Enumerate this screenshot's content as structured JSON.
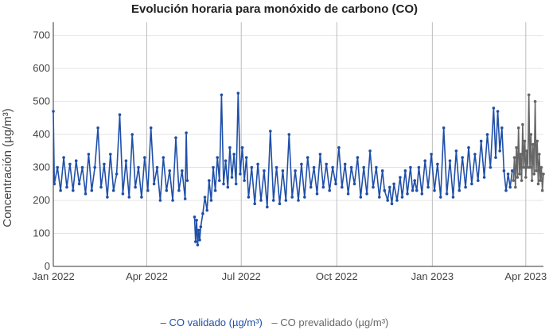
{
  "chart_data": {
    "type": "line",
    "title": "Evolución horaria para monóxido de carbono (CO)",
    "ylabel": "Concentración (µg/m³)",
    "xlabel": "",
    "ylim": [
      0,
      740
    ],
    "xlim": [
      "2022-01-01",
      "2023-04-18"
    ],
    "y_ticks": [
      0,
      100,
      200,
      300,
      400,
      500,
      600,
      700
    ],
    "x_ticks": [
      {
        "date": "2022-01-01",
        "label": "Jan 2022"
      },
      {
        "date": "2022-04-01",
        "label": "Apr 2022"
      },
      {
        "date": "2022-07-01",
        "label": "Jul 2022"
      },
      {
        "date": "2022-10-01",
        "label": "Oct 2022"
      },
      {
        "date": "2023-01-01",
        "label": "Jan 2023"
      },
      {
        "date": "2023-04-01",
        "label": "Apr 2023"
      }
    ],
    "grid": true,
    "legend_position": "bottom",
    "series": [
      {
        "name": "CO validado (µg/m³)",
        "color": "#1f4fa8",
        "marker": "dot",
        "points": [
          [
            "2022-01-01",
            470
          ],
          [
            "2022-01-02",
            250
          ],
          [
            "2022-01-05",
            300
          ],
          [
            "2022-01-08",
            230
          ],
          [
            "2022-01-11",
            330
          ],
          [
            "2022-01-14",
            240
          ],
          [
            "2022-01-17",
            310
          ],
          [
            "2022-01-20",
            230
          ],
          [
            "2022-01-23",
            320
          ],
          [
            "2022-01-26",
            250
          ],
          [
            "2022-01-29",
            300
          ],
          [
            "2022-02-01",
            220
          ],
          [
            "2022-02-04",
            340
          ],
          [
            "2022-02-07",
            230
          ],
          [
            "2022-02-10",
            300
          ],
          [
            "2022-02-13",
            420
          ],
          [
            "2022-02-16",
            240
          ],
          [
            "2022-02-19",
            310
          ],
          [
            "2022-02-22",
            210
          ],
          [
            "2022-02-25",
            340
          ],
          [
            "2022-02-28",
            230
          ],
          [
            "2022-03-03",
            280
          ],
          [
            "2022-03-06",
            460
          ],
          [
            "2022-03-09",
            220
          ],
          [
            "2022-03-12",
            320
          ],
          [
            "2022-03-15",
            210
          ],
          [
            "2022-03-18",
            400
          ],
          [
            "2022-03-21",
            240
          ],
          [
            "2022-03-24",
            300
          ],
          [
            "2022-03-27",
            210
          ],
          [
            "2022-03-30",
            330
          ],
          [
            "2022-04-02",
            230
          ],
          [
            "2022-04-05",
            420
          ],
          [
            "2022-04-08",
            250
          ],
          [
            "2022-04-11",
            300
          ],
          [
            "2022-04-14",
            200
          ],
          [
            "2022-04-17",
            330
          ],
          [
            "2022-04-20",
            230
          ],
          [
            "2022-04-23",
            290
          ],
          [
            "2022-04-26",
            200
          ],
          [
            "2022-04-29",
            390
          ],
          [
            "2022-05-02",
            230
          ],
          [
            "2022-05-05",
            290
          ],
          [
            "2022-05-08",
            205
          ],
          [
            "2022-05-09",
            405
          ],
          [
            "2022-05-10",
            260
          ],
          [
            "2022-05-17",
            150
          ],
          [
            "2022-05-18",
            75
          ],
          [
            "2022-05-19",
            140
          ],
          [
            "2022-05-20",
            65
          ],
          [
            "2022-05-21",
            110
          ],
          [
            "2022-05-22",
            80
          ],
          [
            "2022-05-23",
            120
          ],
          [
            "2022-05-25",
            160
          ],
          [
            "2022-05-27",
            210
          ],
          [
            "2022-05-29",
            170
          ],
          [
            "2022-05-31",
            260
          ],
          [
            "2022-06-02",
            200
          ],
          [
            "2022-06-04",
            300
          ],
          [
            "2022-06-06",
            230
          ],
          [
            "2022-06-08",
            330
          ],
          [
            "2022-06-10",
            260
          ],
          [
            "2022-06-12",
            520
          ],
          [
            "2022-06-14",
            250
          ],
          [
            "2022-06-16",
            320
          ],
          [
            "2022-06-18",
            240
          ],
          [
            "2022-06-20",
            360
          ],
          [
            "2022-06-22",
            270
          ],
          [
            "2022-06-24",
            340
          ],
          [
            "2022-06-26",
            250
          ],
          [
            "2022-06-28",
            525
          ],
          [
            "2022-06-30",
            280
          ],
          [
            "2022-07-02",
            360
          ],
          [
            "2022-07-04",
            260
          ],
          [
            "2022-07-06",
            330
          ],
          [
            "2022-07-08",
            210
          ],
          [
            "2022-07-11",
            300
          ],
          [
            "2022-07-14",
            190
          ],
          [
            "2022-07-17",
            310
          ],
          [
            "2022-07-20",
            200
          ],
          [
            "2022-07-23",
            290
          ],
          [
            "2022-07-26",
            180
          ],
          [
            "2022-07-29",
            410
          ],
          [
            "2022-08-01",
            200
          ],
          [
            "2022-08-04",
            300
          ],
          [
            "2022-08-07",
            190
          ],
          [
            "2022-08-10",
            290
          ],
          [
            "2022-08-13",
            200
          ],
          [
            "2022-08-16",
            400
          ],
          [
            "2022-08-19",
            210
          ],
          [
            "2022-08-22",
            290
          ],
          [
            "2022-08-25",
            200
          ],
          [
            "2022-08-28",
            310
          ],
          [
            "2022-08-31",
            210
          ],
          [
            "2022-09-03",
            330
          ],
          [
            "2022-09-06",
            240
          ],
          [
            "2022-09-09",
            300
          ],
          [
            "2022-09-12",
            220
          ],
          [
            "2022-09-15",
            340
          ],
          [
            "2022-09-18",
            240
          ],
          [
            "2022-09-21",
            310
          ],
          [
            "2022-09-24",
            230
          ],
          [
            "2022-09-27",
            300
          ],
          [
            "2022-09-30",
            250
          ],
          [
            "2022-10-03",
            360
          ],
          [
            "2022-10-06",
            240
          ],
          [
            "2022-10-09",
            310
          ],
          [
            "2022-10-12",
            220
          ],
          [
            "2022-10-15",
            300
          ],
          [
            "2022-10-18",
            250
          ],
          [
            "2022-10-21",
            330
          ],
          [
            "2022-10-24",
            210
          ],
          [
            "2022-10-27",
            300
          ],
          [
            "2022-10-30",
            220
          ],
          [
            "2022-11-02",
            350
          ],
          [
            "2022-11-05",
            240
          ],
          [
            "2022-11-08",
            300
          ],
          [
            "2022-11-11",
            210
          ],
          [
            "2022-11-14",
            290
          ],
          [
            "2022-11-16",
            230
          ],
          [
            "2022-11-19",
            200
          ],
          [
            "2022-11-21",
            240
          ],
          [
            "2022-11-23",
            190
          ],
          [
            "2022-11-25",
            250
          ],
          [
            "2022-11-28",
            200
          ],
          [
            "2022-12-01",
            270
          ],
          [
            "2022-12-03",
            210
          ],
          [
            "2022-12-06",
            290
          ],
          [
            "2022-12-08",
            220
          ],
          [
            "2022-12-11",
            300
          ],
          [
            "2022-12-13",
            230
          ],
          [
            "2022-12-15",
            260
          ],
          [
            "2022-12-17",
            230
          ],
          [
            "2022-12-19",
            300
          ],
          [
            "2022-12-22",
            220
          ],
          [
            "2022-12-25",
            320
          ],
          [
            "2022-12-28",
            240
          ],
          [
            "2022-12-31",
            340
          ],
          [
            "2023-01-03",
            230
          ],
          [
            "2023-01-06",
            310
          ],
          [
            "2023-01-09",
            210
          ],
          [
            "2023-01-12",
            420
          ],
          [
            "2023-01-15",
            220
          ],
          [
            "2023-01-18",
            320
          ],
          [
            "2023-01-21",
            210
          ],
          [
            "2023-01-24",
            350
          ],
          [
            "2023-01-27",
            230
          ],
          [
            "2023-01-30",
            330
          ],
          [
            "2023-02-02",
            240
          ],
          [
            "2023-02-05",
            360
          ],
          [
            "2023-02-08",
            250
          ],
          [
            "2023-02-11",
            340
          ],
          [
            "2023-02-14",
            260
          ],
          [
            "2023-02-17",
            380
          ],
          [
            "2023-02-20",
            270
          ],
          [
            "2023-02-23",
            400
          ],
          [
            "2023-02-26",
            300
          ],
          [
            "2023-03-01",
            480
          ],
          [
            "2023-03-03",
            330
          ],
          [
            "2023-03-05",
            470
          ],
          [
            "2023-03-07",
            350
          ],
          [
            "2023-03-09",
            420
          ],
          [
            "2023-03-11",
            290
          ],
          [
            "2023-03-13",
            230
          ],
          [
            "2023-03-15",
            280
          ],
          [
            "2023-03-17",
            240
          ],
          [
            "2023-03-19",
            290
          ]
        ]
      },
      {
        "name": "CO prevalidado (µg/m³)",
        "color": "#666666",
        "marker": "dot",
        "points": [
          [
            "2023-03-20",
            260
          ],
          [
            "2023-03-21",
            330
          ],
          [
            "2023-03-22",
            240
          ],
          [
            "2023-03-23",
            360
          ],
          [
            "2023-03-24",
            270
          ],
          [
            "2023-03-25",
            420
          ],
          [
            "2023-03-26",
            280
          ],
          [
            "2023-03-27",
            340
          ],
          [
            "2023-03-28",
            260
          ],
          [
            "2023-03-29",
            430
          ],
          [
            "2023-03-30",
            300
          ],
          [
            "2023-03-31",
            380
          ],
          [
            "2023-04-01",
            270
          ],
          [
            "2023-04-02",
            350
          ],
          [
            "2023-04-03",
            300
          ],
          [
            "2023-04-04",
            520
          ],
          [
            "2023-04-05",
            300
          ],
          [
            "2023-04-06",
            400
          ],
          [
            "2023-04-07",
            260
          ],
          [
            "2023-04-08",
            370
          ],
          [
            "2023-04-09",
            280
          ],
          [
            "2023-04-10",
            500
          ],
          [
            "2023-04-11",
            290
          ],
          [
            "2023-04-12",
            380
          ],
          [
            "2023-04-13",
            250
          ],
          [
            "2023-04-14",
            340
          ],
          [
            "2023-04-15",
            260
          ],
          [
            "2023-04-16",
            300
          ],
          [
            "2023-04-17",
            230
          ],
          [
            "2023-04-18",
            280
          ]
        ]
      }
    ]
  },
  "legend": {
    "items": [
      {
        "marker": "–",
        "label": "CO validado (µg/m³)",
        "color": "#1f4fa8"
      },
      {
        "marker": "–",
        "label": "CO prevalidado (µg/m³)",
        "color": "#666666"
      }
    ]
  }
}
